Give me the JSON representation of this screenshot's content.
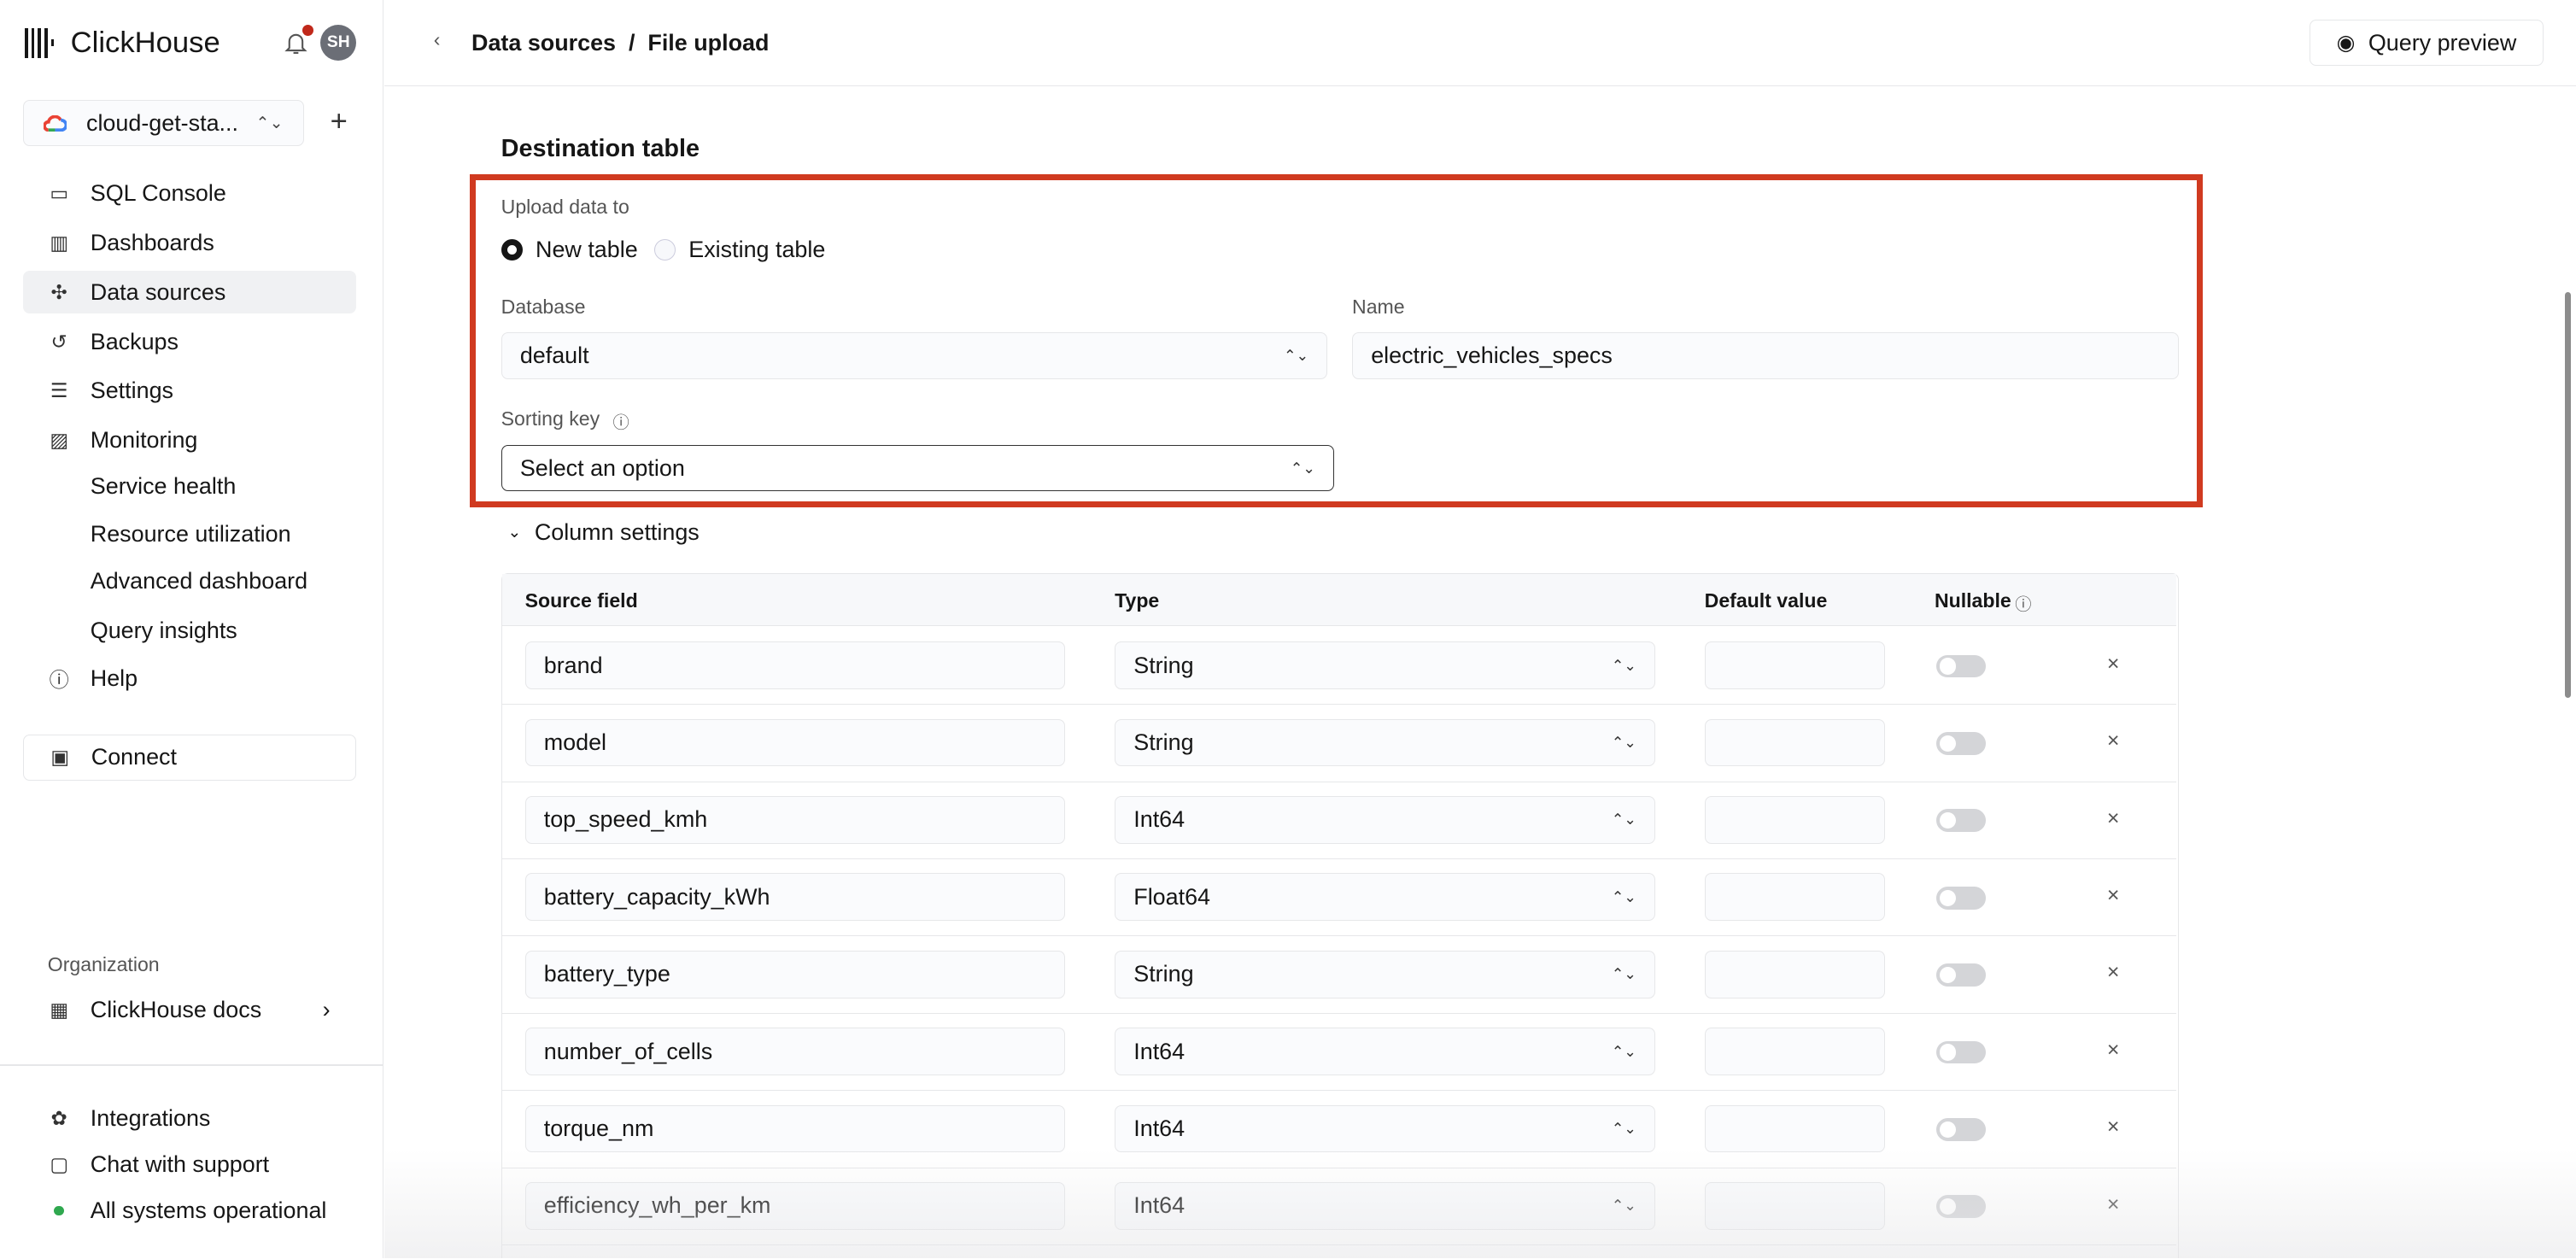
{
  "app": {
    "brand": "ClickHouse",
    "avatar_initials": "SH",
    "notification_dot_color": "#c0281a"
  },
  "sidebar": {
    "service": "cloud-get-sta...",
    "items": [
      {
        "label": "SQL Console",
        "icon": "sql-console-icon"
      },
      {
        "label": "Dashboards",
        "icon": "dashboards-icon"
      },
      {
        "label": "Data sources",
        "icon": "data-sources-icon",
        "active": true
      },
      {
        "label": "Backups",
        "icon": "backups-icon"
      },
      {
        "label": "Settings",
        "icon": "settings-icon"
      },
      {
        "label": "Monitoring",
        "icon": "monitoring-icon"
      }
    ],
    "monitoring_sub": [
      "Service health",
      "Resource utilization",
      "Advanced dashboard",
      "Query insights"
    ],
    "help": "Help",
    "connect": "Connect",
    "org_label": "Organization",
    "org_name": "ClickHouse docs",
    "bottom": {
      "integrations": "Integrations",
      "chat": "Chat with support",
      "status": "All systems operational",
      "status_color": "#2fa84f"
    }
  },
  "header": {
    "breadcrumb": "Data sources  /  File upload",
    "query_preview": "Query preview"
  },
  "form": {
    "title": "Destination table",
    "upload_label": "Upload data to",
    "radio_new": "New table",
    "radio_existing": "Existing table",
    "selected": "New table",
    "database_label": "Database",
    "database_value": "default",
    "name_label": "Name",
    "name_value": "electric_vehicles_specs",
    "sorting_label": "Sorting key",
    "sorting_value": "Select an option",
    "highlight_color": "#d03a20"
  },
  "columns": {
    "toggle_label": "Column settings",
    "headers": {
      "source": "Source field",
      "type": "Type",
      "default": "Default value",
      "nullable": "Nullable"
    },
    "rows": [
      {
        "source": "brand",
        "type": "String",
        "nullable": false
      },
      {
        "source": "model",
        "type": "String",
        "nullable": false
      },
      {
        "source": "top_speed_kmh",
        "type": "Int64",
        "nullable": false
      },
      {
        "source": "battery_capacity_kWh",
        "type": "Float64",
        "nullable": false
      },
      {
        "source": "battery_type",
        "type": "String",
        "nullable": false
      },
      {
        "source": "number_of_cells",
        "type": "Int64",
        "nullable": false
      },
      {
        "source": "torque_nm",
        "type": "Int64",
        "nullable": false
      },
      {
        "source": "efficiency_wh_per_km",
        "type": "Int64",
        "nullable": false
      }
    ]
  }
}
